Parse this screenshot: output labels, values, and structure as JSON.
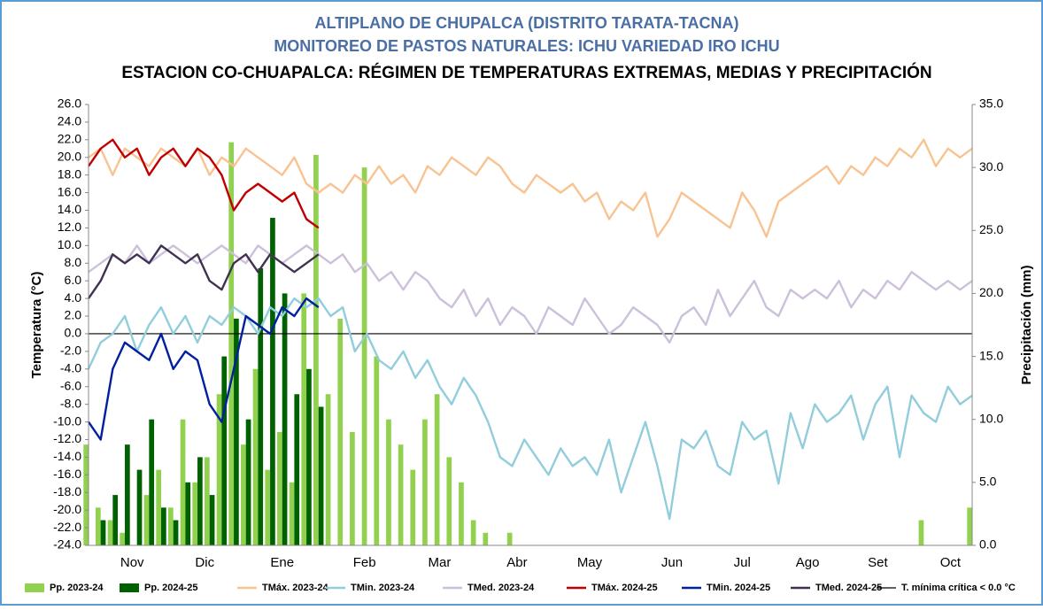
{
  "chart_data": {
    "type": "line",
    "title_lines": [
      "ALTIPLANO DE CHUPALCA (DISTRITO TARATA-TACNA)",
      "MONITOREO DE PASTOS NATURALES: ICHU VARIEDAD IRO ICHU",
      "ESTACION CO-CHUAPALCA: RÉGIMEN DE TEMPERATURAS EXTREMAS, MEDIAS Y PRECIPITACIÓN"
    ],
    "ylabel": "Temperatura (°C)",
    "y2label": "Precipitación (mm)",
    "xlim": [
      0,
      365
    ],
    "xticks": [
      {
        "value": 18,
        "label": "Nov"
      },
      {
        "value": 48,
        "label": "Dic"
      },
      {
        "value": 80,
        "label": "Ene"
      },
      {
        "value": 114,
        "label": "Feb"
      },
      {
        "value": 145,
        "label": "Mar"
      },
      {
        "value": 177,
        "label": "Abr"
      },
      {
        "value": 207,
        "label": "May"
      },
      {
        "value": 241,
        "label": "Jun"
      },
      {
        "value": 270,
        "label": "Jul"
      },
      {
        "value": 297,
        "label": "Ago"
      },
      {
        "value": 326,
        "label": "Set"
      },
      {
        "value": 356,
        "label": "Oct"
      }
    ],
    "ylim": [
      -24,
      26
    ],
    "yticks": [
      {
        "value": 26,
        "label": "26.0"
      },
      {
        "value": 24,
        "label": "24.0"
      },
      {
        "value": 22,
        "label": "22.0"
      },
      {
        "value": 20,
        "label": "20.0"
      },
      {
        "value": 18,
        "label": "18.0"
      },
      {
        "value": 16,
        "label": "16.0"
      },
      {
        "value": 14,
        "label": "14.0"
      },
      {
        "value": 12,
        "label": "12.0"
      },
      {
        "value": 10,
        "label": "10.0"
      },
      {
        "value": 8,
        "label": "8.0"
      },
      {
        "value": 6,
        "label": "6.0"
      },
      {
        "value": 4,
        "label": "4.0"
      },
      {
        "value": 2,
        "label": "2.0"
      },
      {
        "value": 0,
        "label": "0.0"
      },
      {
        "value": -2,
        "label": "-2.0"
      },
      {
        "value": -4,
        "label": "-4.0"
      },
      {
        "value": -6,
        "label": "-6.0"
      },
      {
        "value": -8,
        "label": "-8.0"
      },
      {
        "value": -10,
        "label": "-10.0"
      },
      {
        "value": -12,
        "label": "-12.0"
      },
      {
        "value": -14,
        "label": "-14.0"
      },
      {
        "value": -16,
        "label": "-16.0"
      },
      {
        "value": -18,
        "label": "-18.0"
      },
      {
        "value": -20,
        "label": "-20.0"
      },
      {
        "value": -22,
        "label": "-22.0"
      },
      {
        "value": -24,
        "label": "-24.0"
      }
    ],
    "y2lim": [
      0,
      35
    ],
    "y2ticks": [
      {
        "value": 35,
        "label": "35.0"
      },
      {
        "value": 30,
        "label": "30.0"
      },
      {
        "value": 25,
        "label": "25.0"
      },
      {
        "value": 20,
        "label": "20.0"
      },
      {
        "value": 15,
        "label": "15.0"
      },
      {
        "value": 10,
        "label": "10.0"
      },
      {
        "value": 5,
        "label": "5.0"
      },
      {
        "value": 0,
        "label": "0.0"
      }
    ],
    "x": [
      0,
      5,
      10,
      15,
      20,
      25,
      30,
      35,
      40,
      45,
      50,
      55,
      60,
      65,
      70,
      75,
      80,
      85,
      90,
      95,
      100,
      105,
      110,
      115,
      120,
      125,
      130,
      135,
      140,
      145,
      150,
      155,
      160,
      165,
      170,
      175,
      180,
      185,
      190,
      195,
      200,
      205,
      210,
      215,
      220,
      225,
      230,
      235,
      240,
      245,
      250,
      255,
      260,
      265,
      270,
      275,
      280,
      285,
      290,
      295,
      300,
      305,
      310,
      315,
      320,
      325,
      330,
      335,
      340,
      345,
      350,
      355,
      360,
      365
    ],
    "series": [
      {
        "name": "Pp. 2023-24",
        "type": "bar",
        "axis": "y2",
        "color": "#92d050",
        "values": [
          8,
          3,
          2,
          1,
          0,
          4,
          6,
          3,
          10,
          5,
          7,
          12,
          32,
          8,
          14,
          6,
          9,
          5,
          20,
          31,
          12,
          18,
          9,
          30,
          15,
          10,
          8,
          6,
          10,
          12,
          7,
          5,
          2,
          1,
          0,
          1,
          0,
          0,
          0,
          0,
          0,
          0,
          0,
          0,
          0,
          0,
          0,
          0,
          0,
          0,
          0,
          0,
          0,
          0,
          0,
          0,
          0,
          0,
          0,
          0,
          0,
          0,
          0,
          0,
          0,
          0,
          0,
          0,
          0,
          2,
          0,
          0,
          0,
          3
        ]
      },
      {
        "name": "Pp. 2024-25",
        "type": "bar",
        "axis": "y2",
        "color": "#006100",
        "values": [
          0,
          2,
          4,
          8,
          6,
          10,
          3,
          2,
          5,
          7,
          4,
          15,
          18,
          10,
          22,
          26,
          20,
          12,
          14,
          11,
          null,
          null,
          null,
          null,
          null,
          null,
          null,
          null,
          null,
          null,
          null,
          null,
          null,
          null,
          null,
          null,
          null,
          null,
          null,
          null,
          null,
          null,
          null,
          null,
          null,
          null,
          null,
          null,
          null,
          null,
          null,
          null,
          null,
          null,
          null,
          null,
          null,
          null,
          null,
          null,
          null,
          null,
          null,
          null,
          null,
          null,
          null,
          null,
          null,
          null,
          null,
          null,
          null,
          null
        ]
      },
      {
        "name": "TMáx. 2023-24",
        "type": "line",
        "color": "#f9c391",
        "values": [
          20,
          21,
          18,
          21,
          20,
          19,
          21,
          20,
          19,
          21,
          18,
          20,
          19,
          21,
          20,
          19,
          18,
          20,
          17,
          16,
          17,
          16,
          18,
          17,
          19,
          17,
          18,
          16,
          19,
          18,
          20,
          19,
          18,
          20,
          19,
          17,
          16,
          18,
          17,
          16,
          17,
          15,
          16,
          13,
          15,
          14,
          16,
          11,
          13,
          16,
          15,
          14,
          13,
          12,
          16,
          14,
          11,
          15,
          16,
          17,
          18,
          19,
          17,
          19,
          18,
          20,
          19,
          21,
          20,
          22,
          19,
          21,
          20,
          21
        ]
      },
      {
        "name": "TMin. 2023-24",
        "type": "line",
        "color": "#92cddc",
        "values": [
          -4,
          -1,
          0,
          2,
          -2,
          1,
          3,
          0,
          2,
          -1,
          2,
          1,
          3,
          2,
          0,
          3,
          2,
          4,
          3,
          4,
          2,
          3,
          -2,
          0,
          -3,
          -4,
          -2,
          -5,
          -3,
          -6,
          -8,
          -5,
          -7,
          -10,
          -14,
          -15,
          -12,
          -14,
          -16,
          -13,
          -15,
          -14,
          -16,
          -12,
          -18,
          -14,
          -10,
          -15,
          -21,
          -12,
          -13,
          -11,
          -15,
          -16,
          -10,
          -12,
          -11,
          -17,
          -9,
          -13,
          -8,
          -10,
          -9,
          -7,
          -12,
          -8,
          -6,
          -14,
          -7,
          -9,
          -10,
          -6,
          -8,
          -7
        ]
      },
      {
        "name": "TMed. 2023-24",
        "type": "line",
        "color": "#ccc0da",
        "values": [
          7,
          8,
          9,
          8,
          10,
          8,
          9,
          10,
          9,
          8,
          9,
          10,
          9,
          8,
          10,
          9,
          8,
          9,
          10,
          9,
          8,
          9,
          7,
          8,
          6,
          7,
          5,
          7,
          6,
          4,
          3,
          5,
          2,
          4,
          1,
          3,
          2,
          0,
          3,
          2,
          1,
          4,
          2,
          0,
          1,
          3,
          2,
          1,
          -1,
          2,
          3,
          1,
          5,
          2,
          4,
          6,
          3,
          2,
          5,
          4,
          5,
          4,
          6,
          3,
          5,
          4,
          6,
          5,
          7,
          6,
          5,
          6,
          5,
          6
        ]
      },
      {
        "name": "TMáx. 2024-25",
        "type": "line",
        "color": "#c00000",
        "values": [
          19,
          21,
          22,
          20,
          21,
          18,
          20,
          21,
          19,
          21,
          20,
          18,
          14,
          16,
          17,
          16,
          15,
          16,
          13,
          12,
          null,
          null,
          null,
          null,
          null,
          null,
          null,
          null,
          null,
          null,
          null,
          null,
          null,
          null,
          null,
          null,
          null,
          null,
          null,
          null,
          null,
          null,
          null,
          null,
          null,
          null,
          null,
          null,
          null,
          null,
          null,
          null,
          null,
          null,
          null,
          null,
          null,
          null,
          null,
          null,
          null,
          null,
          null,
          null,
          null,
          null,
          null,
          null,
          null,
          null,
          null,
          null,
          null,
          null
        ]
      },
      {
        "name": "TMin. 2024-25",
        "type": "line",
        "color": "#00209f",
        "values": [
          -10,
          -12,
          -4,
          -1,
          -2,
          -3,
          0,
          -4,
          -2,
          -3,
          -8,
          -10,
          -4,
          2,
          1,
          0,
          3,
          2,
          4,
          3,
          null,
          null,
          null,
          null,
          null,
          null,
          null,
          null,
          null,
          null,
          null,
          null,
          null,
          null,
          null,
          null,
          null,
          null,
          null,
          null,
          null,
          null,
          null,
          null,
          null,
          null,
          null,
          null,
          null,
          null,
          null,
          null,
          null,
          null,
          null,
          null,
          null,
          null,
          null,
          null,
          null,
          null,
          null,
          null,
          null,
          null,
          null,
          null,
          null,
          null,
          null,
          null,
          null,
          null
        ]
      },
      {
        "name": "TMed. 2024-25",
        "type": "line",
        "color": "#403152",
        "values": [
          4,
          6,
          9,
          8,
          9,
          8,
          10,
          9,
          8,
          9,
          6,
          5,
          8,
          9,
          7,
          9,
          8,
          7,
          8,
          9,
          null,
          null,
          null,
          null,
          null,
          null,
          null,
          null,
          null,
          null,
          null,
          null,
          null,
          null,
          null,
          null,
          null,
          null,
          null,
          null,
          null,
          null,
          null,
          null,
          null,
          null,
          null,
          null,
          null,
          null,
          null,
          null,
          null,
          null,
          null,
          null,
          null,
          null,
          null,
          null,
          null,
          null,
          null,
          null,
          null,
          null,
          null,
          null,
          null,
          null,
          null,
          null,
          null,
          null
        ]
      }
    ],
    "reference_line": {
      "name": "T. mínima crítica < 0.0 °C",
      "value": 0,
      "color": "#000000"
    }
  }
}
